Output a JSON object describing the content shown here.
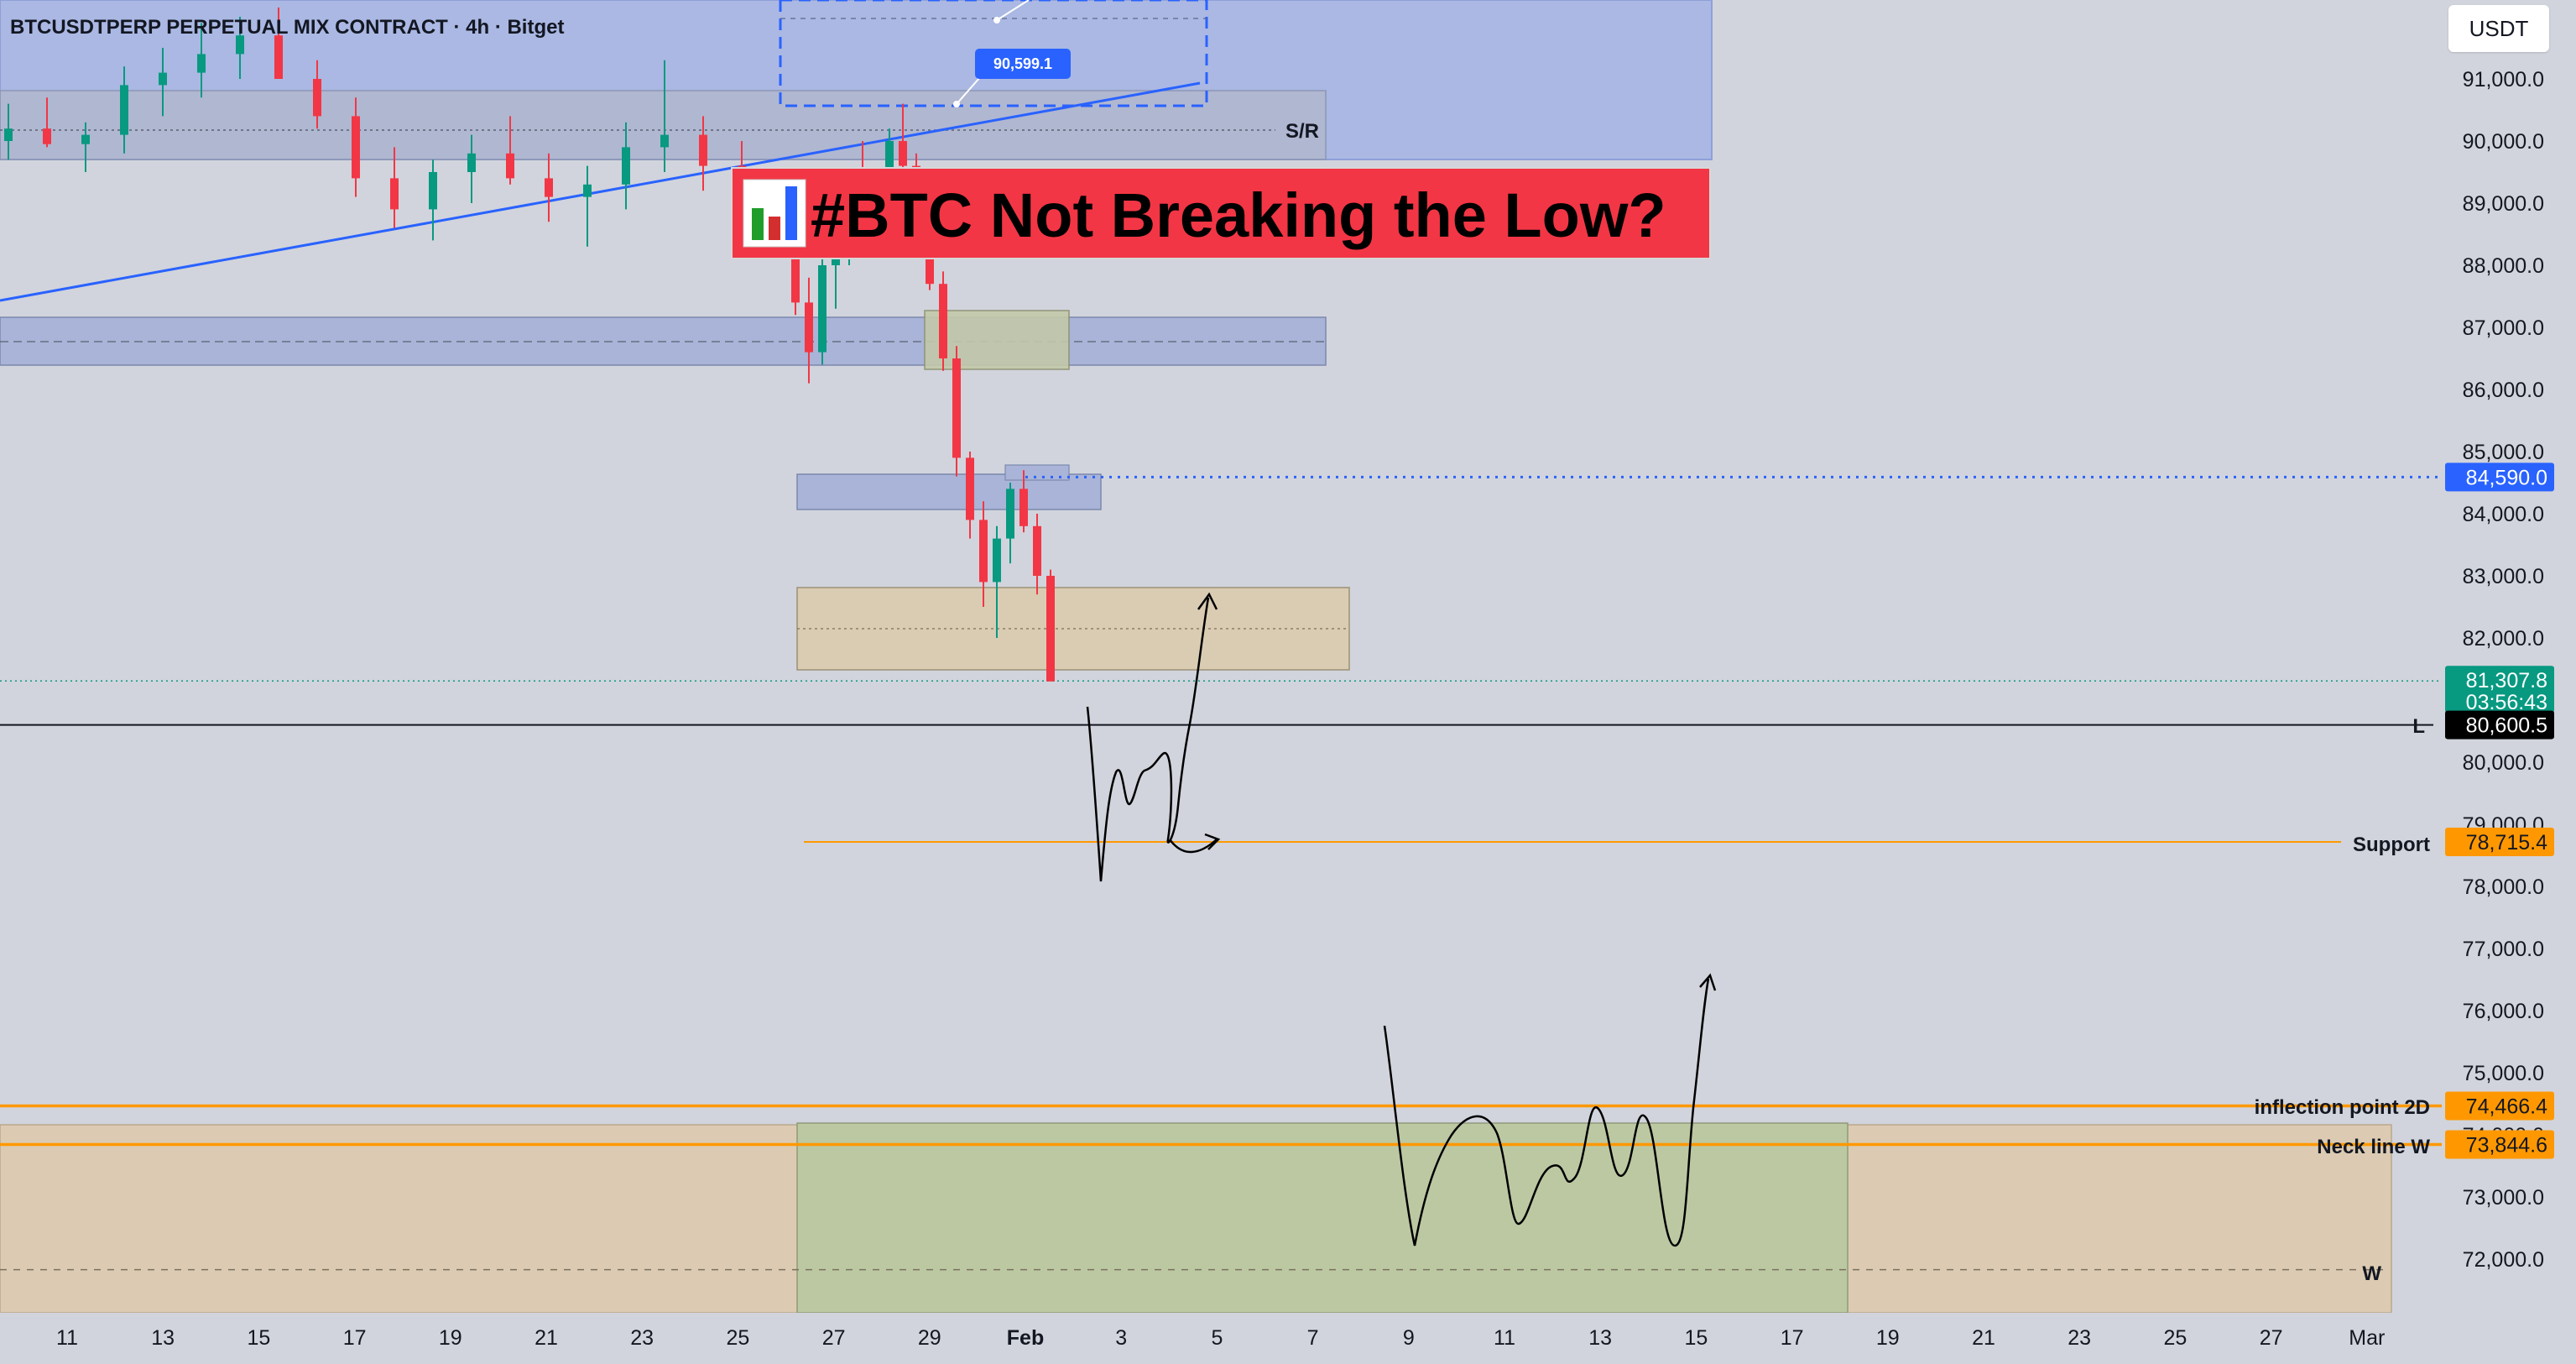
{
  "header": {
    "symbol_title": "BTCUSDTPERP PERPETUAL MIX CONTRACT · 4h · Bitget"
  },
  "currency_button": "USDT",
  "headline": "#BTC Not Breaking the Low?",
  "headline_icon": "bar-chart-icon",
  "colors": {
    "background": "#d1d4dc",
    "up_candle": "#089981",
    "down_candle": "#f23645",
    "headline_bg": "#f23645",
    "orange_line": "#ff9800",
    "blue_line": "#2962ff",
    "last_price_bg": "#089981"
  },
  "annotations": {
    "sr_label": "S/R",
    "fib_label": "90,599.1",
    "l_label": "L",
    "support_label": "Support",
    "inflection_label": "inflection point 2D",
    "neckline_label": "Neck line W",
    "w_label": "W"
  },
  "chart_data": {
    "type": "candlestick",
    "x_labels": [
      "11",
      "13",
      "15",
      "17",
      "19",
      "21",
      "23",
      "25",
      "27",
      "29",
      "Feb",
      "3",
      "5",
      "7",
      "9",
      "11",
      "13",
      "15",
      "17",
      "19",
      "21",
      "23",
      "25",
      "27",
      "Mar"
    ],
    "y_ticks": [
      72000,
      73000,
      74000,
      75000,
      76000,
      77000,
      78000,
      79000,
      80000,
      81000,
      82000,
      83000,
      84000,
      85000,
      86000,
      87000,
      88000,
      89000,
      90000,
      91000
    ],
    "y_tick_labels": [
      "72,000.0",
      "73,000.0",
      "74,000.0",
      "75,000.0",
      "76,000.0",
      "77,000.0",
      "78,000.0",
      "79,000.0",
      "80,000.0",
      "81,000.0",
      "82,000.0",
      "83,000.0",
      "84,000.0",
      "85,000.0",
      "86,000.0",
      "87,000.0",
      "88,000.0",
      "89,000.0",
      "90,000.0",
      "91,000.0"
    ],
    "ylim": [
      71200,
      92150
    ],
    "price_labels": {
      "level_84590": "84,590.0",
      "last_price": "81,307.8",
      "countdown": "03:56:43",
      "low_L": "80,600.5",
      "support": "78,715.4",
      "inflection_2d": "74,466.4",
      "neckline_w": "73,844.6"
    },
    "levels": {
      "horizontal_blue_dotted": 84590,
      "last_price": 81307.8,
      "low_L": 80600.5,
      "support": 78715.4,
      "inflection_2d": 74466.4,
      "neckline_w": 73844.6,
      "w_dashed": 71830
    },
    "candles_ohlc_approx": [
      [
        90000,
        90600,
        89700,
        90200
      ],
      [
        90200,
        90700,
        89900,
        89950
      ],
      [
        89950,
        90300,
        89500,
        90100
      ],
      [
        90100,
        91200,
        89800,
        90900
      ],
      [
        90900,
        91500,
        90400,
        91100
      ],
      [
        91100,
        91900,
        90700,
        91400
      ],
      [
        91400,
        92000,
        91000,
        91700
      ],
      [
        91700,
        92150,
        91300,
        91000
      ],
      [
        91000,
        91300,
        90200,
        90400
      ],
      [
        90400,
        90700,
        89100,
        89400
      ],
      [
        89400,
        89900,
        88600,
        88900
      ],
      [
        88900,
        89700,
        88400,
        89500
      ],
      [
        89500,
        90100,
        89000,
        89800
      ],
      [
        89800,
        90400,
        89300,
        89400
      ],
      [
        89400,
        89800,
        88700,
        89100
      ],
      [
        89100,
        89600,
        88300,
        89300
      ],
      [
        89300,
        90300,
        88900,
        89900
      ],
      [
        89900,
        91300,
        89500,
        90100
      ],
      [
        90100,
        90400,
        89200,
        89600
      ],
      [
        89600,
        90000,
        88200,
        88600
      ],
      [
        88600,
        89100,
        87200,
        87400
      ],
      [
        87400,
        87800,
        86100,
        86600
      ],
      [
        86600,
        88200,
        86400,
        88000
      ],
      [
        88000,
        88700,
        87300,
        88300
      ],
      [
        88300,
        89400,
        88000,
        89100
      ],
      [
        89100,
        90000,
        88700,
        88900
      ],
      [
        88900,
        89500,
        88300,
        89200
      ],
      [
        89200,
        90200,
        88900,
        90000
      ],
      [
        90000,
        90600,
        89300,
        89600
      ],
      [
        89600,
        89800,
        88100,
        88300
      ],
      [
        88300,
        88500,
        87600,
        87700
      ],
      [
        87700,
        87900,
        86300,
        86500
      ],
      [
        86500,
        86700,
        84600,
        84900
      ],
      [
        84900,
        85000,
        83600,
        83900
      ],
      [
        83900,
        84200,
        82500,
        82900
      ],
      [
        82900,
        83800,
        82000,
        83600
      ],
      [
        83600,
        84500,
        83200,
        84400
      ],
      [
        84400,
        84700,
        83700,
        83800
      ],
      [
        83800,
        84000,
        82700,
        83000
      ],
      [
        83000,
        83100,
        81300,
        81300
      ]
    ]
  }
}
